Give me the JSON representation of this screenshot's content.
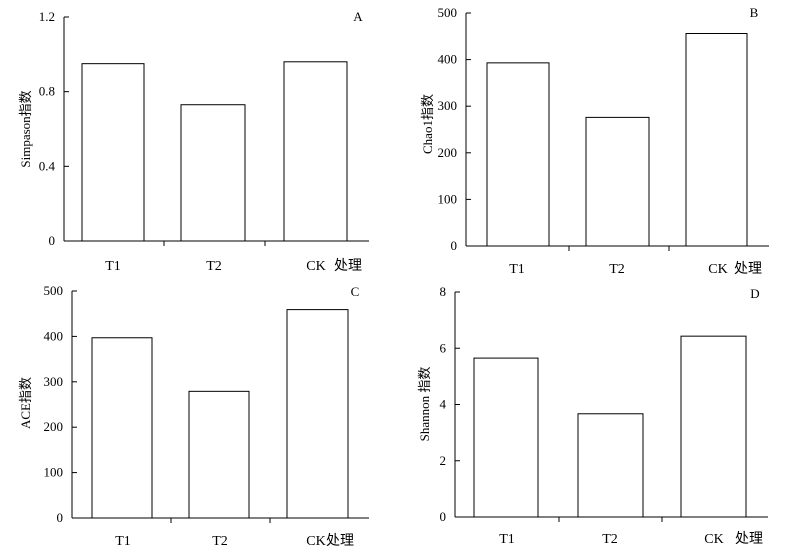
{
  "chart_data": [
    {
      "type": "bar",
      "panel": "A",
      "categories": [
        "T1",
        "T2",
        "CK"
      ],
      "values": [
        0.95,
        0.73,
        0.96
      ],
      "ylabel": "Simpason指数",
      "xlabel": "处理",
      "ylim": [
        0,
        1.2
      ],
      "yticks": [
        0,
        0.4,
        0.8,
        1.2
      ],
      "ytick_labels": [
        "0",
        "0.4",
        "0.8",
        "1.2"
      ],
      "grid": false
    },
    {
      "type": "bar",
      "panel": "B",
      "categories": [
        "T1",
        "T2",
        "CK"
      ],
      "values": [
        393,
        276,
        456
      ],
      "ylabel": "Chao1指数",
      "xlabel": "处理",
      "ylim": [
        0,
        500
      ],
      "yticks": [
        0,
        100,
        200,
        300,
        400,
        500
      ],
      "ytick_labels": [
        "0",
        "100",
        "200",
        "300",
        "400",
        "500"
      ],
      "grid": false
    },
    {
      "type": "bar",
      "panel": "C",
      "categories": [
        "T1",
        "T2",
        "CK"
      ],
      "values": [
        397,
        279,
        459
      ],
      "ylabel": "ACE指数",
      "xlabel": "处理",
      "ylim": [
        0,
        500
      ],
      "yticks": [
        0,
        100,
        200,
        300,
        400,
        500
      ],
      "ytick_labels": [
        "0",
        "100",
        "200",
        "300",
        "400",
        "500"
      ],
      "grid": false
    },
    {
      "type": "bar",
      "panel": "D",
      "categories": [
        "T1",
        "T2",
        "CK"
      ],
      "values": [
        5.65,
        3.67,
        6.43
      ],
      "ylabel": "Shannon 指数",
      "xlabel": "处理",
      "ylim": [
        0,
        8
      ],
      "yticks": [
        0,
        2,
        4,
        6,
        8
      ],
      "ytick_labels": [
        "0",
        "2",
        "4",
        "6",
        "8"
      ],
      "grid": false
    }
  ]
}
